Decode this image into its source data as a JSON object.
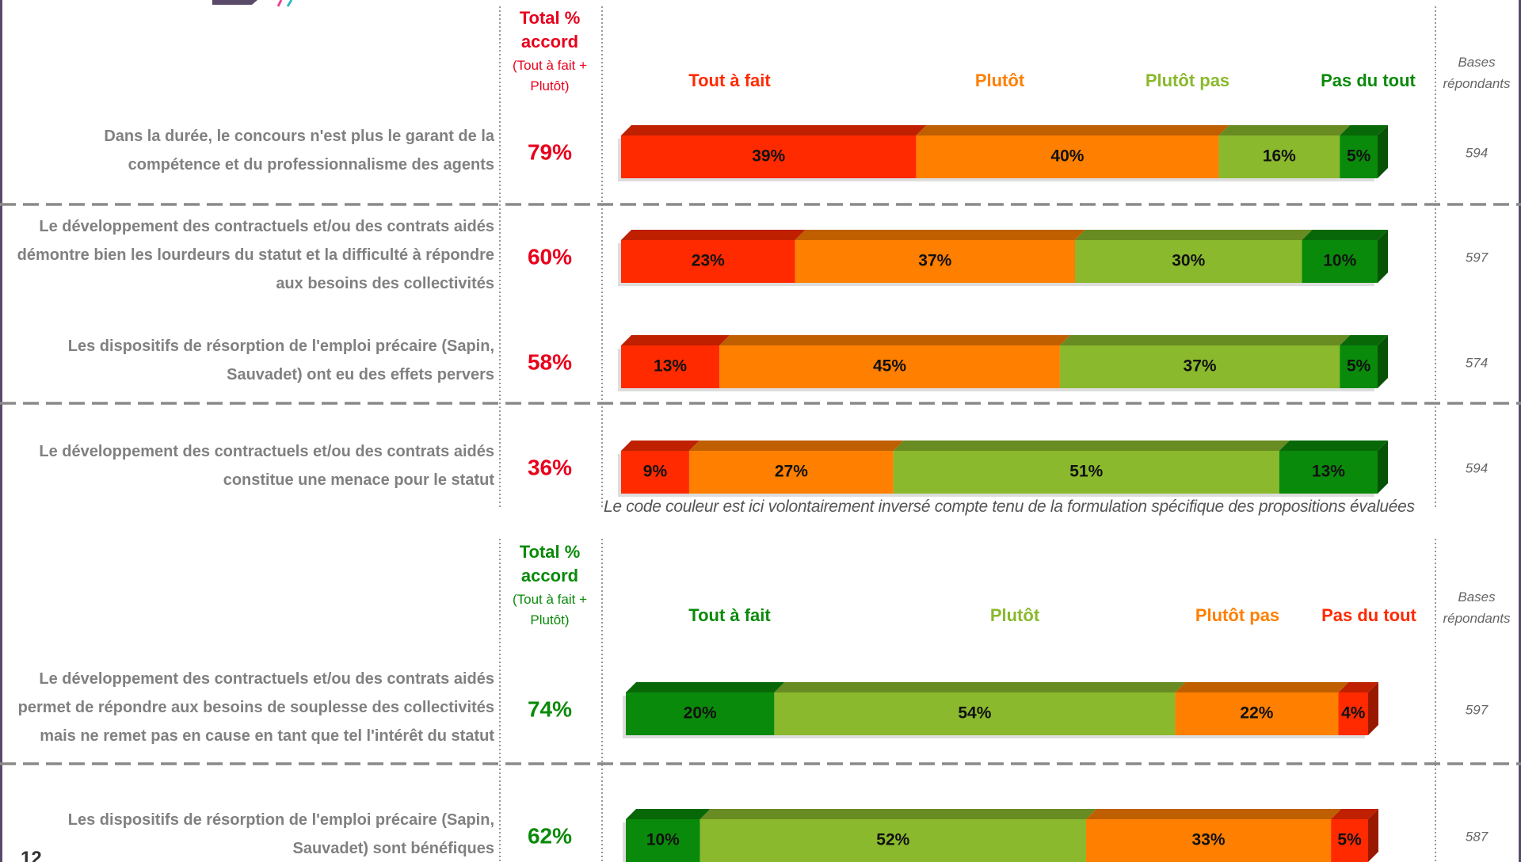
{
  "page_number": "12",
  "chart_data": [
    {
      "type": "bar",
      "total_label": "Total % accord",
      "total_note": "(Tout à fait + Plutôt)",
      "bases_label": "Bases répondants",
      "xlim": [
        0,
        100
      ],
      "categories": [
        "Dans la durée, le concours n'est plus le garant de la compétence et du professionnalisme des agents",
        "Le développement des contractuels et/ou des contrats aidés démontre bien les lourdeurs du statut et la difficulté à répondre aux besoins des collectivités",
        "Les dispositifs de résorption de l'emploi précaire (Sapin, Sauvadet) ont eu des effets pervers",
        "Le développement des contractuels et/ou des contrats aidés constitue une menace pour le statut"
      ],
      "totals": [
        79,
        60,
        58,
        36
      ],
      "total_labels": [
        "79%",
        "60%",
        "58%",
        "36%"
      ],
      "total_color": "#e8001c",
      "bases": [
        594,
        597,
        574,
        594
      ],
      "series": [
        {
          "name": "Tout à fait",
          "color": "#ff2a00",
          "values": [
            39,
            23,
            13,
            9
          ],
          "value_labels": [
            "39%",
            "23%",
            "13%",
            "9%"
          ]
        },
        {
          "name": "Plutôt",
          "color": "#ff7f00",
          "values": [
            40,
            37,
            45,
            27
          ],
          "value_labels": [
            "40%",
            "37%",
            "45%",
            "27%"
          ]
        },
        {
          "name": "Plutôt pas",
          "color": "#8ab92d",
          "values": [
            16,
            30,
            37,
            51
          ],
          "value_labels": [
            "16%",
            "30%",
            "37%",
            "51%"
          ]
        },
        {
          "name": "Pas du tout",
          "color": "#0a8a0a",
          "values": [
            5,
            10,
            5,
            13
          ],
          "value_labels": [
            "5%",
            "10%",
            "5%",
            "13%"
          ]
        }
      ],
      "note": "Le code couleur est ici volontairement inversé compte tenu de la formulation spécifique des propositions évaluées"
    },
    {
      "type": "bar",
      "total_label": "Total % accord",
      "total_note": "(Tout à fait + Plutôt)",
      "bases_label": "Bases répondants",
      "xlim": [
        0,
        100
      ],
      "categories": [
        "Le développement des contractuels et/ou des contrats aidés permet de répondre aux besoins de souplesse des collectivités mais ne remet pas en cause en tant que tel l'intérêt du statut",
        "Les dispositifs de résorption de l'emploi précaire (Sapin, Sauvadet) sont bénéfiques"
      ],
      "totals": [
        74,
        62
      ],
      "total_labels": [
        "74%",
        "62%"
      ],
      "total_color": "#0a8a0a",
      "bases": [
        597,
        587
      ],
      "series": [
        {
          "name": "Tout à fait",
          "color": "#0a8a0a",
          "values": [
            20,
            10
          ],
          "value_labels": [
            "20%",
            "10%"
          ]
        },
        {
          "name": "Plutôt",
          "color": "#8ab92d",
          "values": [
            54,
            52
          ],
          "value_labels": [
            "54%",
            "52%"
          ]
        },
        {
          "name": "Plutôt pas",
          "color": "#ff7f00",
          "values": [
            22,
            33
          ],
          "value_labels": [
            "22%",
            "33%"
          ]
        },
        {
          "name": "Pas du tout",
          "color": "#ff2a00",
          "values": [
            4,
            5
          ],
          "value_labels": [
            "4%",
            "5%"
          ]
        }
      ]
    }
  ]
}
